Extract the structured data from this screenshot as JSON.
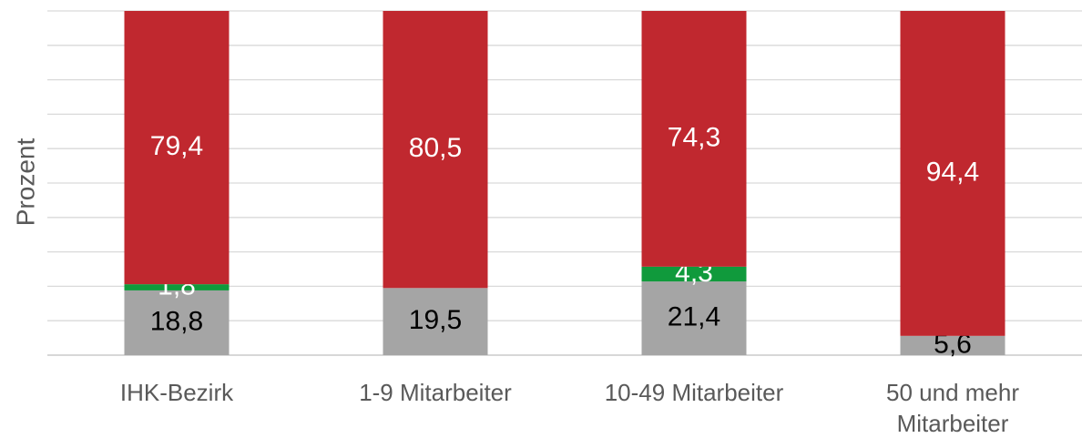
{
  "chart_data": {
    "type": "stacked_bar",
    "y_label": "Prozent",
    "categories": [
      "IHK-Bezirk",
      "1-9 Mitarbeiter",
      "10-49 Mitarbeiter",
      "50 und mehr Mitarbeiter"
    ],
    "series": [
      {
        "color": "#a5a5a5",
        "label_color": "#000000",
        "values": [
          18.8,
          19.5,
          21.4,
          5.6
        ],
        "value_labels": [
          "18,8",
          "19,5",
          "21,4",
          "5,6"
        ]
      },
      {
        "color": "#109a3c",
        "label_color": "#ffffff",
        "values": [
          1.8,
          null,
          4.3,
          null
        ],
        "value_labels": [
          "1,8",
          null,
          "4,3",
          null
        ]
      },
      {
        "color": "#c0282f",
        "label_color": "#ffffff",
        "values": [
          79.4,
          80.5,
          74.3,
          94.4
        ],
        "value_labels": [
          "79,4",
          "80,5",
          "74,3",
          "94,4"
        ]
      }
    ],
    "ylim": [
      0,
      100
    ],
    "yticks": [
      0,
      10,
      20,
      30,
      40,
      50,
      60,
      70,
      80,
      90,
      100
    ],
    "grid": true
  }
}
